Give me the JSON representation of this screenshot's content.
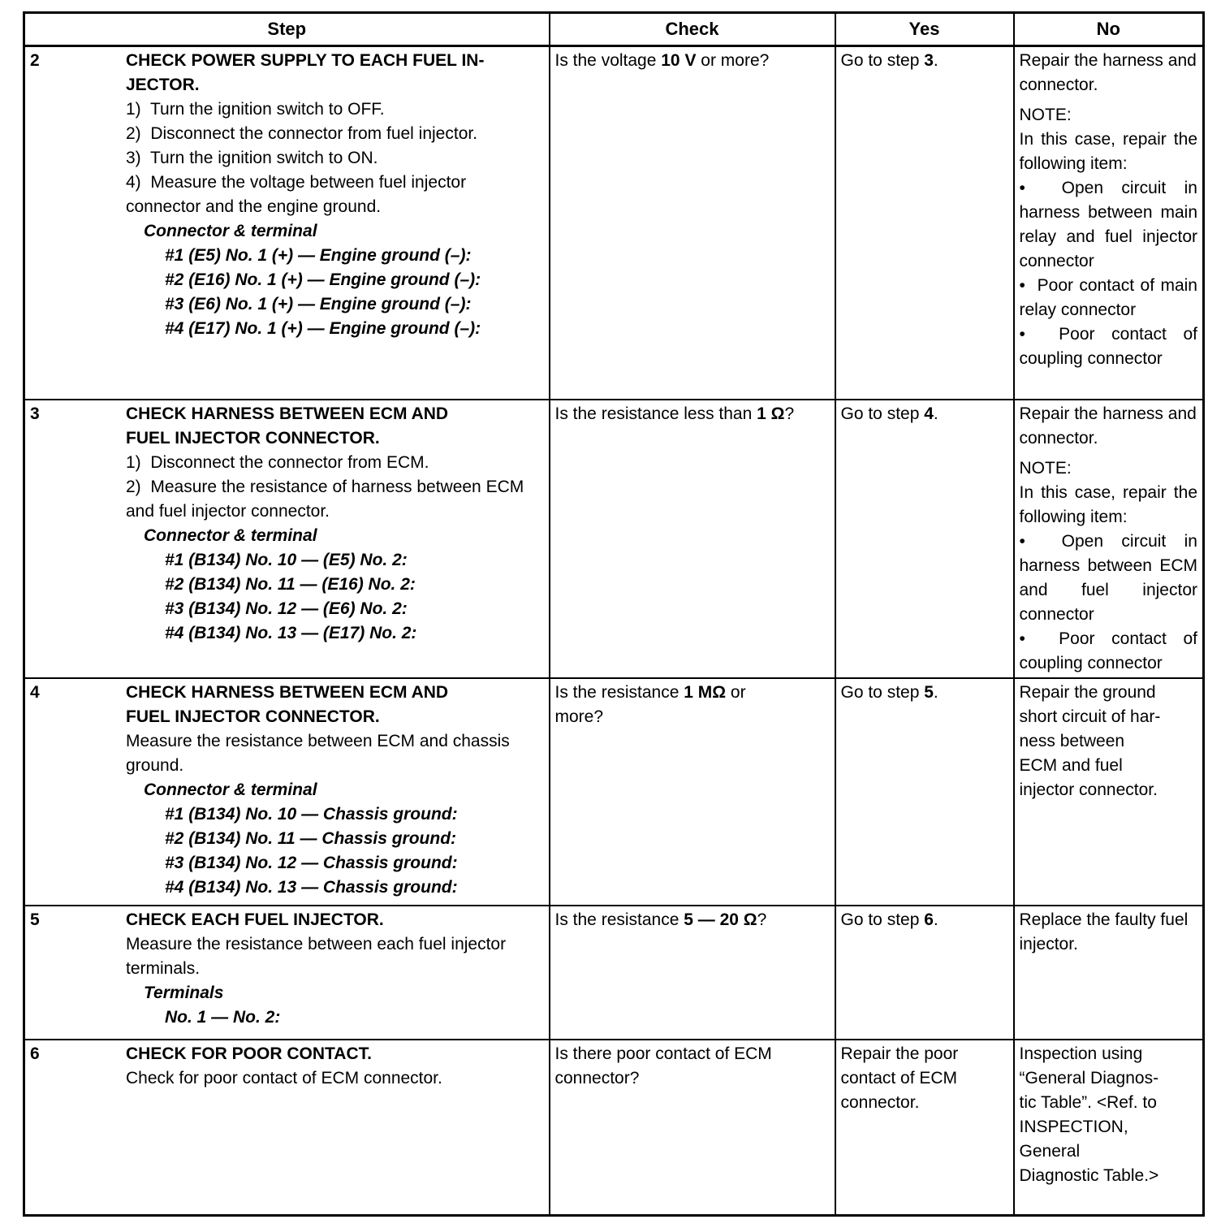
{
  "colors": {
    "border": "#000000",
    "background": "#ffffff",
    "text": "#000000"
  },
  "table": {
    "headers": {
      "step": "Step",
      "check": "Check",
      "yes": "Yes",
      "no": "No"
    },
    "rows": [
      {
        "num": "2",
        "title_lines": [
          "CHECK POWER SUPPLY TO EACH FUEL IN-",
          "JECTOR."
        ],
        "body": [
          {
            "style": "numbered",
            "text": "1)  Turn the ignition switch to OFF."
          },
          {
            "style": "numbered",
            "text": "2)  Disconnect the connector from fuel injector."
          },
          {
            "style": "numbered",
            "text": "3)  Turn the ignition switch to ON."
          },
          {
            "style": "numbered",
            "text": "4)  Measure the voltage between fuel injector connector and the engine ground."
          },
          {
            "style": "subhead",
            "text": "Connector & terminal"
          },
          {
            "style": "spec",
            "text": "#1 (E5) No. 1 (+) — Engine ground (–):"
          },
          {
            "style": "spec",
            "text": "#2 (E16) No. 1 (+) — Engine ground (–):"
          },
          {
            "style": "spec",
            "text": "#3 (E6) No. 1 (+) — Engine ground (–):"
          },
          {
            "style": "spec",
            "text": "#4 (E17) No. 1 (+) — Engine ground (–):"
          }
        ],
        "check": {
          "pre": "Is the voltage ",
          "value": "10 V",
          "post": " or more?"
        },
        "yes": {
          "pre": "Go to step ",
          "step": "3",
          "post": "."
        },
        "no": [
          {
            "style": "para",
            "text": "Repair the harness and connector."
          },
          {
            "style": "note",
            "text": "NOTE:"
          },
          {
            "style": "para_j",
            "text": "In this case, repair the following item:"
          },
          {
            "style": "bullet",
            "text": "Open circuit in harness between main relay and fuel injector connector"
          },
          {
            "style": "bullet",
            "text": "Poor contact of main relay connector"
          },
          {
            "style": "bullet",
            "text": "Poor contact of coupling connector"
          }
        ]
      },
      {
        "num": "3",
        "title_lines": [
          "CHECK HARNESS BETWEEN ECM AND",
          "FUEL INJECTOR CONNECTOR."
        ],
        "body": [
          {
            "style": "numbered",
            "text": "1)  Disconnect the connector from ECM."
          },
          {
            "style": "numbered",
            "text": "2)  Measure the resistance of harness between ECM and fuel injector connector."
          },
          {
            "style": "subhead",
            "text": "Connector & terminal"
          },
          {
            "style": "spec",
            "text": "#1 (B134) No. 10 — (E5) No. 2:"
          },
          {
            "style": "spec",
            "text": "#2 (B134) No. 11 — (E16) No. 2:"
          },
          {
            "style": "spec",
            "text": "#3 (B134) No. 12 — (E6) No. 2:"
          },
          {
            "style": "spec",
            "text": "#4 (B134) No. 13 — (E17) No. 2:"
          }
        ],
        "check": {
          "pre": "Is the resistance less than ",
          "value": "1 Ω",
          "post": "?"
        },
        "yes": {
          "pre": "Go to step ",
          "step": "4",
          "post": "."
        },
        "no": [
          {
            "style": "para",
            "text": "Repair the harness and connector."
          },
          {
            "style": "note",
            "text": "NOTE:"
          },
          {
            "style": "para_j",
            "text": "In this case, repair the following item:"
          },
          {
            "style": "bullet",
            "text": "Open circuit in harness between ECM and fuel injector connector"
          },
          {
            "style": "bullet",
            "text": "Poor contact of coupling connector"
          }
        ]
      },
      {
        "num": "4",
        "title_lines": [
          "CHECK HARNESS BETWEEN ECM AND",
          "FUEL INJECTOR CONNECTOR."
        ],
        "body": [
          {
            "style": "plain",
            "text": "Measure the resistance between ECM and chassis ground."
          },
          {
            "style": "subhead",
            "text": "Connector & terminal"
          },
          {
            "style": "spec",
            "text": "#1 (B134) No. 10 — Chassis ground:"
          },
          {
            "style": "spec",
            "text": "#2 (B134) No. 11 — Chassis ground:"
          },
          {
            "style": "spec",
            "text": "#3 (B134) No. 12 — Chassis ground:"
          },
          {
            "style": "spec",
            "text": "#4 (B134) No. 13 — Chassis ground:"
          }
        ],
        "check": {
          "pre": "Is the resistance ",
          "value": "1 MΩ",
          "post": " or\nmore?"
        },
        "yes": {
          "pre": "Go to step ",
          "step": "5",
          "post": "."
        },
        "no": [
          {
            "style": "hard",
            "text": "Repair the ground\nshort circuit of har-\nness between\nECM and fuel\ninjector connector."
          }
        ]
      },
      {
        "num": "5",
        "title_lines": [
          "CHECK EACH FUEL INJECTOR."
        ],
        "body": [
          {
            "style": "plain",
            "text": "Measure the resistance between each fuel injector terminals."
          },
          {
            "style": "subhead",
            "text": "Terminals"
          },
          {
            "style": "spec",
            "text": "No. 1 — No. 2:"
          }
        ],
        "check": {
          "pre": "Is the resistance ",
          "value": "5 — 20 Ω",
          "post": "?"
        },
        "yes": {
          "pre": "Go to step ",
          "step": "6",
          "post": "."
        },
        "no": [
          {
            "style": "para",
            "text": "Replace the faulty fuel injector."
          }
        ]
      },
      {
        "num": "6",
        "title_lines": [
          "CHECK FOR POOR CONTACT."
        ],
        "body": [
          {
            "style": "plain",
            "text": "Check for poor contact of ECM connector."
          }
        ],
        "check": {
          "pre": "Is there poor contact of ECM\nconnector?",
          "value": "",
          "post": ""
        },
        "yes": {
          "pre": "Repair the poor contact of ECM connector.",
          "step": "",
          "post": ""
        },
        "no": [
          {
            "style": "hard",
            "text": "Inspection using\n“General Diagnos-\ntic Table”. <Ref. to\nINSPECTION,\nGeneral\nDiagnostic Table.>"
          }
        ]
      }
    ]
  }
}
